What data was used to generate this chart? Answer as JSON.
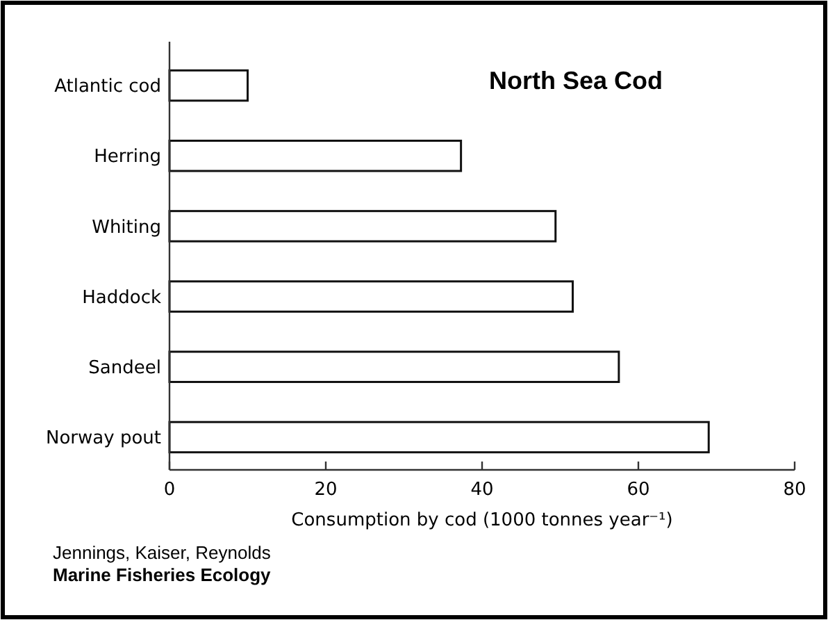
{
  "chart_data": {
    "type": "bar",
    "orientation": "horizontal",
    "title": "North Sea Cod",
    "xlabel": "Consumption by cod (1000 tonnes year⁻¹)",
    "categories": [
      "Atlantic cod",
      "Herring",
      "Whiting",
      "Haddock",
      "Sandeel",
      "Norway pout"
    ],
    "values": [
      10,
      37.3,
      49.4,
      51.6,
      57.5,
      69
    ],
    "color": "#ffffff",
    "xlim": [
      0,
      80
    ],
    "xticks": [
      0,
      20,
      40,
      60,
      80
    ],
    "grid": false,
    "annotations": [
      "Jennings, Kaiser, Reynolds",
      "Marine Fisheries Ecology"
    ]
  }
}
